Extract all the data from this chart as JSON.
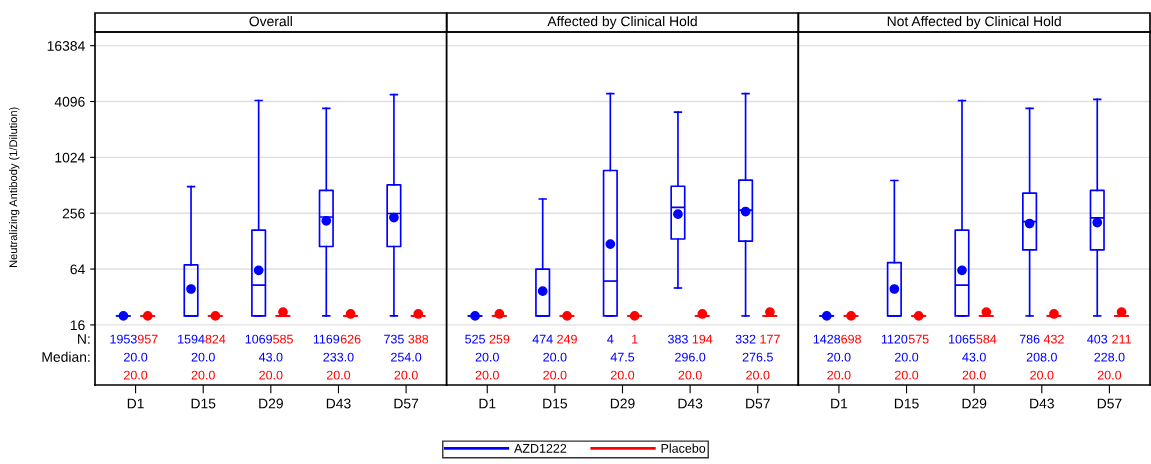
{
  "chart_data": [
    {
      "type": "box",
      "title": "Overall",
      "ylabel": "Neutralizing Antibody (1/Dilution)",
      "categories": [
        "D1",
        "D15",
        "D29",
        "D43",
        "D57"
      ],
      "log": "y",
      "ylim": [
        3.6,
        23000
      ],
      "yticks": [
        16,
        64,
        256,
        1024,
        4096,
        16384
      ],
      "grid": "y",
      "marker": "circle",
      "legend": "bottom",
      "annotations": [
        "N:",
        "Median:"
      ],
      "series": [
        {
          "name": "AZD1222",
          "color": "#0000ff",
          "value_labels": [
            [
              "1953",
              "20.0"
            ],
            [
              "1594",
              "20.0"
            ],
            [
              "1069",
              "43.0"
            ],
            [
              "1169",
              "233.0"
            ],
            [
              "735",
              "254.0"
            ]
          ],
          "boxes": [
            {
              "low": 20,
              "q1": 20,
              "median": 20,
              "q3": 20,
              "high": 20,
              "mean": 20
            },
            {
              "low": 20,
              "q1": 20,
              "median": 20,
              "q3": 71,
              "high": 495,
              "mean": 39
            },
            {
              "low": 20,
              "q1": 20,
              "median": 43,
              "q3": 168,
              "high": 4200,
              "mean": 62
            },
            {
              "low": 20,
              "q1": 112,
              "median": 233,
              "q3": 451,
              "high": 3450,
              "mean": 212
            },
            {
              "low": 20,
              "q1": 112,
              "median": 254,
              "q3": 517,
              "high": 4860,
              "mean": 230
            }
          ]
        },
        {
          "name": "Placebo",
          "color": "#ff0000",
          "value_labels": [
            [
              "957",
              "20.0"
            ],
            [
              "824",
              "20.0"
            ],
            [
              "585",
              "20.0"
            ],
            [
              "626",
              "20.0"
            ],
            [
              "388",
              "20.0"
            ]
          ],
          "boxes": [
            {
              "low": 20,
              "q1": 20,
              "median": 20,
              "q3": 20,
              "high": 20,
              "mean": 20
            },
            {
              "low": 20,
              "q1": 20,
              "median": 20,
              "q3": 20,
              "high": 20,
              "mean": 20
            },
            {
              "low": 20,
              "q1": 20,
              "median": 20,
              "q3": 20,
              "high": 20,
              "mean": 22
            },
            {
              "low": 20,
              "q1": 20,
              "median": 20,
              "q3": 20,
              "high": 20,
              "mean": 21
            },
            {
              "low": 20,
              "q1": 20,
              "median": 20,
              "q3": 20,
              "high": 20,
              "mean": 21
            }
          ]
        }
      ]
    },
    {
      "type": "box",
      "title": "Affected by Clinical Hold",
      "categories": [
        "D1",
        "D15",
        "D29",
        "D43",
        "D57"
      ],
      "log": "y",
      "ylim": [
        3.6,
        23000
      ],
      "grid": "y",
      "marker": "circle",
      "tick_labels": "x",
      "series": [
        {
          "color": "#0000ff",
          "value_labels": [
            [
              "525",
              "20.0"
            ],
            [
              "474",
              "20.0"
            ],
            [
              "4",
              "47.5"
            ],
            [
              "383",
              "296.0"
            ],
            [
              "332",
              "276.5"
            ]
          ],
          "boxes": [
            {
              "low": 20,
              "q1": 20,
              "median": 20,
              "q3": 20,
              "high": 20,
              "mean": 20
            },
            {
              "low": 20,
              "q1": 20,
              "median": 20,
              "q3": 64,
              "high": 364,
              "mean": 37
            },
            {
              "low": 20,
              "q1": 20,
              "median": 47.5,
              "q3": 739,
              "high": 4980,
              "mean": 119
            },
            {
              "low": 40,
              "q1": 135,
              "median": 296,
              "q3": 500,
              "high": 3150,
              "mean": 250
            },
            {
              "low": 20,
              "q1": 128,
              "median": 276.5,
              "q3": 581,
              "high": 4980,
              "mean": 267
            }
          ]
        },
        {
          "color": "#ff0000",
          "value_labels": [
            [
              "259",
              "20.0"
            ],
            [
              "249",
              "20.0"
            ],
            [
              "1",
              "20.0"
            ],
            [
              "194",
              "20.0"
            ],
            [
              "177",
              "20.0"
            ]
          ],
          "boxes": [
            {
              "low": 20,
              "q1": 20,
              "median": 20,
              "q3": 20,
              "high": 20,
              "mean": 21
            },
            {
              "low": 20,
              "q1": 20,
              "median": 20,
              "q3": 20,
              "high": 20,
              "mean": 20
            },
            {
              "low": 20,
              "q1": 20,
              "median": 20,
              "q3": 20,
              "high": 20,
              "mean": 20
            },
            {
              "low": 20,
              "q1": 20,
              "median": 20,
              "q3": 20,
              "high": 20,
              "mean": 21
            },
            {
              "low": 20,
              "q1": 20,
              "median": 20,
              "q3": 20,
              "high": 20,
              "mean": 22
            }
          ]
        }
      ]
    },
    {
      "type": "box",
      "title": "Not Affected by Clinical Hold",
      "categories": [
        "D1",
        "D15",
        "D29",
        "D43",
        "D57"
      ],
      "log": "y",
      "ylim": [
        3.6,
        23000
      ],
      "grid": "y",
      "marker": "circle",
      "tick_labels": "x",
      "series": [
        {
          "color": "#0000ff",
          "value_labels": [
            [
              "1428",
              "20.0"
            ],
            [
              "1120",
              "20.0"
            ],
            [
              "1065",
              "43.0"
            ],
            [
              "786",
              "208.0"
            ],
            [
              "403",
              "228.0"
            ]
          ],
          "boxes": [
            {
              "low": 20,
              "q1": 20,
              "median": 20,
              "q3": 20,
              "high": 20,
              "mean": 20
            },
            {
              "low": 20,
              "q1": 20,
              "median": 20,
              "q3": 75,
              "high": 576,
              "mean": 39
            },
            {
              "low": 20,
              "q1": 20,
              "median": 43,
              "q3": 168,
              "high": 4180,
              "mean": 62
            },
            {
              "low": 20,
              "q1": 103,
              "median": 208,
              "q3": 422,
              "high": 3450,
              "mean": 198
            },
            {
              "low": 20,
              "q1": 103,
              "median": 228,
              "q3": 451,
              "high": 4320,
              "mean": 203
            }
          ]
        },
        {
          "color": "#ff0000",
          "value_labels": [
            [
              "698",
              "20.0"
            ],
            [
              "575",
              "20.0"
            ],
            [
              "584",
              "20.0"
            ],
            [
              "432",
              "20.0"
            ],
            [
              "211",
              "20.0"
            ]
          ],
          "boxes": [
            {
              "low": 20,
              "q1": 20,
              "median": 20,
              "q3": 20,
              "high": 20,
              "mean": 20
            },
            {
              "low": 20,
              "q1": 20,
              "median": 20,
              "q3": 20,
              "high": 20,
              "mean": 20
            },
            {
              "low": 20,
              "q1": 20,
              "median": 20,
              "q3": 20,
              "high": 20,
              "mean": 22
            },
            {
              "low": 20,
              "q1": 20,
              "median": 20,
              "q3": 20,
              "high": 20,
              "mean": 21
            },
            {
              "low": 20,
              "q1": 20,
              "median": 20,
              "q3": 20,
              "high": 20,
              "mean": 22
            }
          ]
        }
      ]
    }
  ]
}
